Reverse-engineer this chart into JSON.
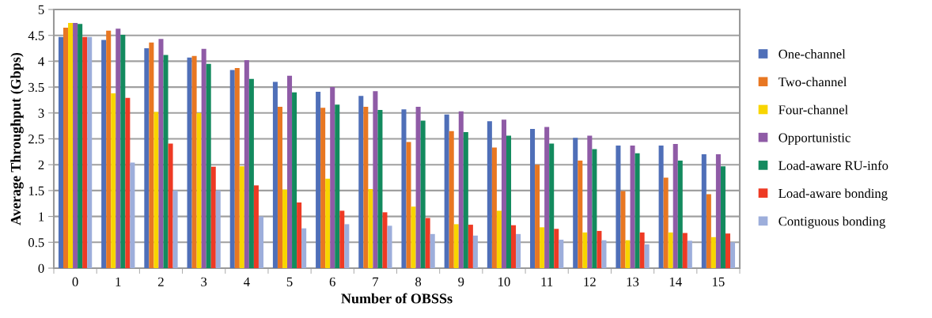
{
  "chart_data": {
    "type": "bar",
    "xlabel": "Number of OBSSs",
    "ylabel": "Average Throughput (Gbps)",
    "categories": [
      "0",
      "1",
      "2",
      "3",
      "4",
      "5",
      "6",
      "7",
      "8",
      "9",
      "10",
      "11",
      "12",
      "13",
      "14",
      "15"
    ],
    "series": [
      {
        "name": "One-channel",
        "color": "#4f6fb8",
        "values": [
          4.47,
          4.41,
          4.25,
          4.07,
          3.83,
          3.6,
          3.41,
          3.33,
          3.07,
          2.97,
          2.84,
          2.69,
          2.52,
          2.37,
          2.37,
          2.2
        ]
      },
      {
        "name": "Two-channel",
        "color": "#e87722",
        "values": [
          4.65,
          4.59,
          4.36,
          4.1,
          3.87,
          3.12,
          3.1,
          3.12,
          2.44,
          2.65,
          2.33,
          2.0,
          2.08,
          1.49,
          1.75,
          1.43
        ]
      },
      {
        "name": "Four-channel",
        "color": "#f8d500",
        "values": [
          4.74,
          3.38,
          3.02,
          3.0,
          1.97,
          1.52,
          1.73,
          1.53,
          1.19,
          0.85,
          1.11,
          0.79,
          0.69,
          0.54,
          0.69,
          0.6
        ]
      },
      {
        "name": "Opportunistic",
        "color": "#8f5ba6",
        "values": [
          4.74,
          4.63,
          4.43,
          4.24,
          4.02,
          3.72,
          3.5,
          3.42,
          3.12,
          3.03,
          2.87,
          2.73,
          2.56,
          2.37,
          2.4,
          2.2
        ]
      },
      {
        "name": "Load-aware RU-info",
        "color": "#138a5e",
        "values": [
          4.72,
          4.51,
          4.12,
          3.95,
          3.66,
          3.4,
          3.16,
          3.06,
          2.85,
          2.63,
          2.56,
          2.41,
          2.3,
          2.22,
          2.08,
          1.97
        ]
      },
      {
        "name": "Load-aware bonding",
        "color": "#ee3a24",
        "values": [
          4.47,
          3.29,
          2.41,
          1.96,
          1.6,
          1.27,
          1.11,
          1.08,
          0.97,
          0.84,
          0.83,
          0.76,
          0.72,
          0.69,
          0.68,
          0.67
        ]
      },
      {
        "name": "Contiguous bonding",
        "color": "#9daedb",
        "values": [
          4.47,
          2.04,
          1.5,
          1.5,
          1.0,
          0.77,
          0.85,
          0.82,
          0.66,
          0.63,
          0.66,
          0.55,
          0.54,
          0.46,
          0.53,
          0.5
        ]
      }
    ],
    "ylim": [
      0,
      5
    ],
    "yticks": [
      0,
      0.5,
      1,
      1.5,
      2,
      2.5,
      3,
      3.5,
      4,
      4.5,
      5
    ],
    "grid": "y",
    "legend": "right"
  }
}
